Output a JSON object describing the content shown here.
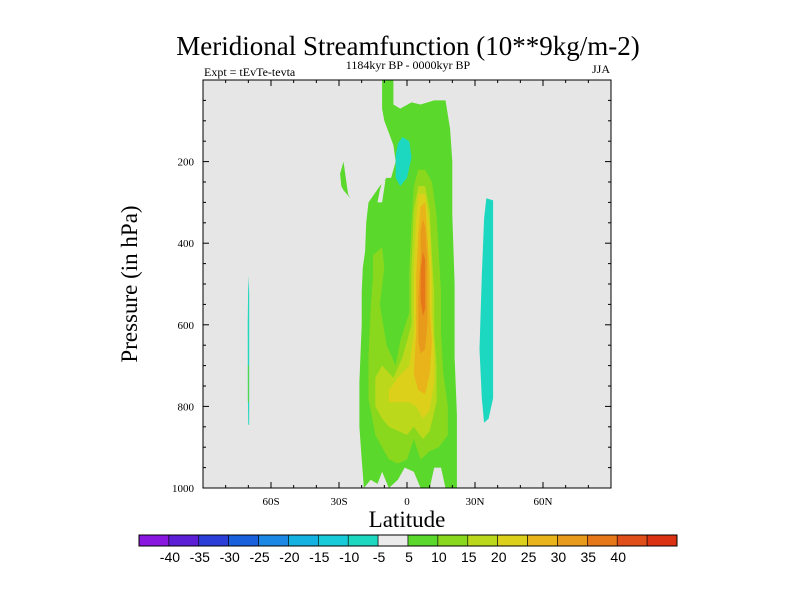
{
  "chart_data": {
    "type": "heatmap",
    "title": "Meridional Streamfunction (10**9kg/m-2)",
    "subtitle_left": "Expt = tEvTe-tevta",
    "subtitle_center": "1184kyr BP - 0000kyr BP",
    "subtitle_right": "JJA",
    "xlabel": "Latitude",
    "ylabel": "Pressure (in hPa)",
    "xlim": [
      -90,
      90
    ],
    "ylim": [
      1000,
      0
    ],
    "x_ticks": [
      {
        "value": -60,
        "label": "60S"
      },
      {
        "value": -30,
        "label": "30S"
      },
      {
        "value": 0,
        "label": "0"
      },
      {
        "value": 30,
        "label": "30N"
      },
      {
        "value": 60,
        "label": "60N"
      }
    ],
    "y_ticks": [
      {
        "value": 200,
        "label": "200"
      },
      {
        "value": 400,
        "label": "400"
      },
      {
        "value": 600,
        "label": "600"
      },
      {
        "value": 800,
        "label": "800"
      },
      {
        "value": 1000,
        "label": "1000"
      }
    ],
    "background_color": "#e6e6e6",
    "colorbar": {
      "colors": [
        "#8a17e0",
        "#5c1fd6",
        "#2b3ed8",
        "#1860dc",
        "#1a88e4",
        "#13b2e0",
        "#17ccd8",
        "#1dd8c0",
        "#ebebeb",
        "#5ad82c",
        "#8ad81e",
        "#bcd81a",
        "#dcd01a",
        "#e8b41a",
        "#e89a1a",
        "#e6781a",
        "#e04e1a",
        "#dc3214"
      ],
      "labels": [
        "-40",
        "-35",
        "-30",
        "-25",
        "-20",
        "-15",
        "-10",
        "-5",
        "5",
        "10",
        "15",
        "20",
        "25",
        "30",
        "35",
        "40"
      ]
    },
    "regions": [
      {
        "name": "green-main",
        "level": 5,
        "polygon": [
          [
            -19,
            1000
          ],
          [
            -20,
            930
          ],
          [
            -21,
            850
          ],
          [
            -21,
            740
          ],
          [
            -20,
            600
          ],
          [
            -20,
            520
          ],
          [
            -19.5,
            460
          ],
          [
            -18.5,
            420
          ],
          [
            -18,
            350
          ],
          [
            -17,
            300
          ],
          [
            -12,
            260
          ],
          [
            -9,
            240
          ],
          [
            -7,
            240
          ],
          [
            -5,
            200
          ],
          [
            -6,
            160
          ],
          [
            -8,
            130
          ],
          [
            -10,
            100
          ],
          [
            -11,
            70
          ],
          [
            -11,
            0
          ],
          [
            -6,
            0
          ],
          [
            -6,
            60
          ],
          [
            -3,
            70
          ],
          [
            2,
            55
          ],
          [
            6,
            60
          ],
          [
            12,
            50
          ],
          [
            17,
            50
          ],
          [
            19,
            120
          ],
          [
            20,
            200
          ],
          [
            20,
            330
          ],
          [
            21,
            500
          ],
          [
            21,
            680
          ],
          [
            22,
            820
          ],
          [
            22,
            1000
          ],
          [
            17,
            1000
          ],
          [
            15,
            950
          ],
          [
            12,
            950
          ],
          [
            10,
            1000
          ],
          [
            6,
            1000
          ],
          [
            3,
            960
          ],
          [
            -1,
            950
          ],
          [
            -4,
            980
          ],
          [
            -8,
            1000
          ],
          [
            -11,
            960
          ],
          [
            -13,
            990
          ],
          [
            -16,
            980
          ]
        ]
      },
      {
        "name": "yellow-green-belt",
        "level": 10,
        "polygon": [
          [
            -17,
            780
          ],
          [
            -17,
            680
          ],
          [
            -16,
            560
          ],
          [
            -15,
            480
          ],
          [
            -15,
            430
          ],
          [
            -13,
            420
          ],
          [
            -11,
            410
          ],
          [
            -10,
            460
          ],
          [
            -12,
            550
          ],
          [
            -9,
            650
          ],
          [
            -5,
            700
          ],
          [
            -3,
            640
          ],
          [
            1,
            570
          ],
          [
            1,
            470
          ],
          [
            2,
            350
          ],
          [
            3,
            260
          ],
          [
            5,
            220
          ],
          [
            8,
            220
          ],
          [
            11,
            250
          ],
          [
            13,
            330
          ],
          [
            14,
            420
          ],
          [
            15,
            520
          ],
          [
            15,
            620
          ],
          [
            16,
            720
          ],
          [
            18,
            800
          ],
          [
            18,
            870
          ],
          [
            14,
            900
          ],
          [
            10,
            910
          ],
          [
            6,
            930
          ],
          [
            3,
            880
          ],
          [
            0,
            930
          ],
          [
            -4,
            940
          ],
          [
            -8,
            930
          ],
          [
            -11,
            900
          ],
          [
            -14,
            870
          ]
        ]
      },
      {
        "name": "yellow-band",
        "level": 15,
        "polygon": [
          [
            -14,
            800
          ],
          [
            -14,
            730
          ],
          [
            -11,
            700
          ],
          [
            -6,
            730
          ],
          [
            -2,
            680
          ],
          [
            2,
            600
          ],
          [
            2,
            460
          ],
          [
            3,
            320
          ],
          [
            5,
            260
          ],
          [
            8,
            260
          ],
          [
            10,
            320
          ],
          [
            11,
            430
          ],
          [
            12,
            520
          ],
          [
            12,
            620
          ],
          [
            13,
            700
          ],
          [
            13,
            790
          ],
          [
            10,
            860
          ],
          [
            7,
            880
          ],
          [
            3,
            850
          ],
          [
            0,
            870
          ],
          [
            -4,
            860
          ],
          [
            -8,
            850
          ],
          [
            -11,
            830
          ]
        ]
      },
      {
        "name": "mustard-core",
        "level": 20,
        "polygon": [
          [
            -8,
            760
          ],
          [
            -4,
            730
          ],
          [
            1,
            700
          ],
          [
            3,
            620
          ],
          [
            3,
            480
          ],
          [
            4,
            340
          ],
          [
            5,
            280
          ],
          [
            8,
            280
          ],
          [
            10,
            360
          ],
          [
            11,
            480
          ],
          [
            11,
            580
          ],
          [
            12,
            660
          ],
          [
            12,
            740
          ],
          [
            10,
            810
          ],
          [
            7,
            830
          ],
          [
            4,
            800
          ],
          [
            1,
            790
          ],
          [
            -4,
            790
          ],
          [
            -8,
            790
          ]
        ]
      },
      {
        "name": "gold-core",
        "level": 25,
        "polygon": [
          [
            3,
            720
          ],
          [
            4,
            620
          ],
          [
            4,
            480
          ],
          [
            5,
            380
          ],
          [
            6,
            310
          ],
          [
            8,
            300
          ],
          [
            9,
            380
          ],
          [
            10,
            470
          ],
          [
            10,
            560
          ],
          [
            11,
            640
          ],
          [
            10,
            720
          ],
          [
            8,
            770
          ],
          [
            5,
            760
          ]
        ]
      },
      {
        "name": "orange-core",
        "level": 30,
        "polygon": [
          [
            5,
            640
          ],
          [
            5,
            530
          ],
          [
            6,
            430
          ],
          [
            6,
            370
          ],
          [
            7,
            340
          ],
          [
            8,
            360
          ],
          [
            9,
            440
          ],
          [
            9,
            520
          ],
          [
            9,
            600
          ],
          [
            8,
            660
          ],
          [
            6,
            670
          ]
        ]
      },
      {
        "name": "dark-orange-core",
        "level": 35,
        "polygon": [
          [
            6,
            540
          ],
          [
            6,
            470
          ],
          [
            7,
            420
          ],
          [
            8,
            440
          ],
          [
            8,
            500
          ],
          [
            8,
            560
          ],
          [
            7,
            580
          ]
        ]
      },
      {
        "name": "cyan-upper-cell",
        "level": -5,
        "polygon": [
          [
            -5,
            240
          ],
          [
            -5,
            185
          ],
          [
            -4,
            155
          ],
          [
            -2,
            140
          ],
          [
            1,
            150
          ],
          [
            2,
            190
          ],
          [
            0,
            240
          ],
          [
            -3,
            260
          ]
        ]
      },
      {
        "name": "cyan-north-strip",
        "level": -5,
        "polygon": [
          [
            33,
            780
          ],
          [
            32,
            660
          ],
          [
            33,
            480
          ],
          [
            34,
            340
          ],
          [
            35,
            290
          ],
          [
            38,
            295
          ],
          [
            38,
            480
          ],
          [
            38,
            640
          ],
          [
            38,
            780
          ],
          [
            36,
            830
          ],
          [
            34,
            840
          ]
        ]
      },
      {
        "name": "cyan-south-strip",
        "level": -5,
        "polygon": [
          [
            -70,
            845
          ],
          [
            -70.2,
            780
          ],
          [
            -70.3,
            600
          ],
          [
            -70,
            480
          ],
          [
            -69.6,
            520
          ],
          [
            -69.6,
            680
          ],
          [
            -69.6,
            845
          ]
        ]
      },
      {
        "name": "green-south-speck",
        "level": 5,
        "polygon": [
          [
            -70.2,
            790
          ],
          [
            -70.2,
            700
          ],
          [
            -69.8,
            700
          ],
          [
            -69.8,
            790
          ]
        ]
      },
      {
        "name": "green-sliver-left",
        "level": 5,
        "polygon": [
          [
            -29,
            260
          ],
          [
            -29.5,
            230
          ],
          [
            -28,
            200
          ],
          [
            -26,
            280
          ],
          [
            -25,
            290
          ],
          [
            -28,
            270
          ]
        ]
      },
      {
        "name": "gray-gap-left",
        "level": 0,
        "polygon": [
          [
            -12,
            270
          ],
          [
            -11,
            250
          ],
          [
            -9.5,
            245
          ],
          [
            -11,
            300
          ],
          [
            -13,
            300
          ]
        ]
      }
    ]
  }
}
